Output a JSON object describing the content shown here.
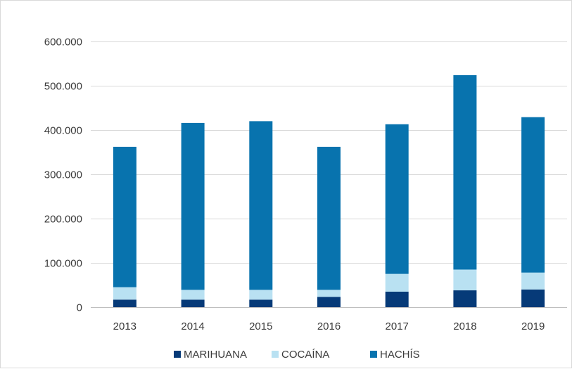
{
  "chart_data": {
    "type": "bar",
    "stacked": true,
    "categories": [
      "2013",
      "2014",
      "2015",
      "2016",
      "2017",
      "2018",
      "2019"
    ],
    "series": [
      {
        "name": "MARIHUANA",
        "color": "#063a78",
        "values": [
          17000,
          17000,
          17000,
          23000,
          35000,
          38000,
          40000
        ]
      },
      {
        "name": "COCAÍNA",
        "color": "#b9e1f2",
        "values": [
          28000,
          22000,
          22000,
          16000,
          40000,
          47000,
          38000
        ]
      },
      {
        "name": "HACHÍS",
        "color": "#0873ae",
        "values": [
          317000,
          377000,
          381000,
          323000,
          338000,
          439000,
          351000
        ]
      }
    ],
    "ylim": [
      0,
      600000
    ],
    "yticks": [
      0,
      100000,
      200000,
      300000,
      400000,
      500000,
      600000
    ],
    "ytick_labels": [
      "0",
      "100.000",
      "200.000",
      "300.000",
      "400.000",
      "500.000",
      "600.000"
    ],
    "grid": true,
    "legend_position": "bottom"
  }
}
